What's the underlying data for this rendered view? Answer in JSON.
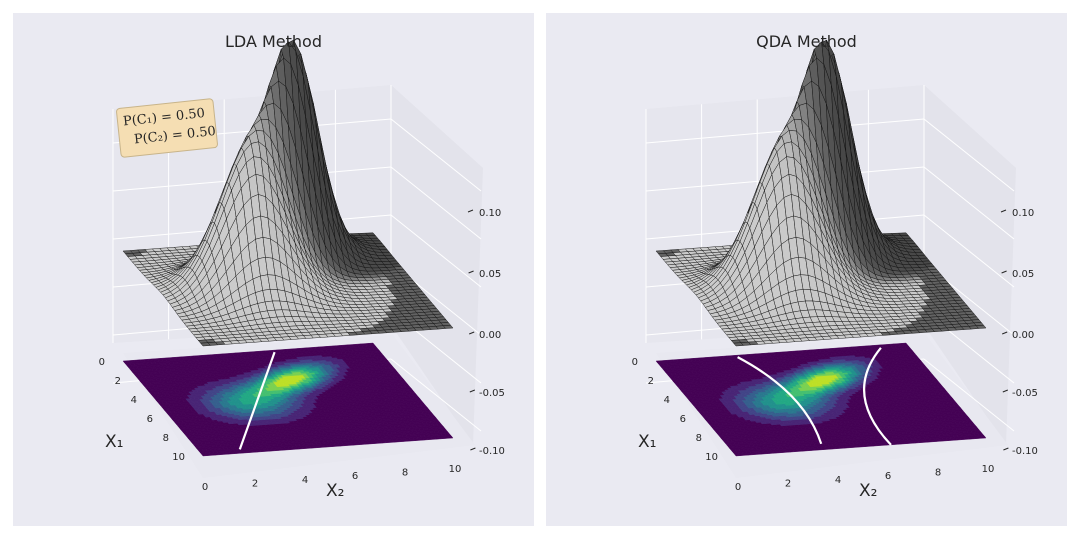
{
  "panels": [
    {
      "title": "LDA Method",
      "legend": {
        "line1": "P(C₁) = 0.50",
        "line2": "P(C₂) = 0.50"
      },
      "xlabel": "X₁",
      "ylabel": "X₂",
      "z_ticks": [
        "0.10",
        "0.05",
        "0.00",
        "-0.05",
        "-0.10"
      ],
      "x1_ticks": [
        "0",
        "2",
        "4",
        "6",
        "8",
        "10"
      ],
      "x2_ticks": [
        "0",
        "2",
        "4",
        "6",
        "8",
        "10"
      ]
    },
    {
      "title": "QDA Method",
      "xlabel": "X₁",
      "ylabel": "X₂",
      "z_ticks": [
        "0.10",
        "0.05",
        "0.00",
        "-0.05",
        "-0.10"
      ],
      "x1_ticks": [
        "0",
        "2",
        "4",
        "6",
        "8",
        "10"
      ],
      "x2_ticks": [
        "0",
        "2",
        "4",
        "6",
        "8",
        "10"
      ]
    }
  ],
  "chart_data": [
    {
      "type": "surface",
      "title": "LDA Method",
      "xlabel": "X₁",
      "ylabel": "X₂",
      "xlim": [
        0,
        10
      ],
      "ylim": [
        0,
        10
      ],
      "zlim": [
        -0.1,
        0.12
      ],
      "prior": {
        "P(C1)": 0.5,
        "P(C2)": 0.5
      },
      "components": [
        {
          "name": "C1",
          "peak": 0.07,
          "mean": [
            5.0,
            3.5
          ]
        },
        {
          "name": "C2",
          "peak": 0.12,
          "mean": [
            3.0,
            5.8
          ]
        }
      ],
      "decision_boundary": "linear",
      "colormap": "viridis",
      "grid": true
    },
    {
      "type": "surface",
      "title": "QDA Method",
      "xlabel": "X₁",
      "ylabel": "X₂",
      "xlim": [
        0,
        10
      ],
      "ylim": [
        0,
        10
      ],
      "zlim": [
        -0.1,
        0.12
      ],
      "components": [
        {
          "name": "C1",
          "peak": 0.07,
          "mean": [
            5.0,
            3.5
          ]
        },
        {
          "name": "C2",
          "peak": 0.12,
          "mean": [
            3.0,
            5.8
          ]
        }
      ],
      "decision_boundary": "quadratic (hyperbola)",
      "colormap": "viridis",
      "grid": true
    }
  ],
  "colors": {
    "background": "#eaeaf2",
    "surface_light": "#c8c8c8",
    "surface_dark": "#454545",
    "contour_low": "#440154",
    "contour_high": "#fde725",
    "boundary": "#ffffff",
    "legend_bg": "#f5deb3"
  }
}
